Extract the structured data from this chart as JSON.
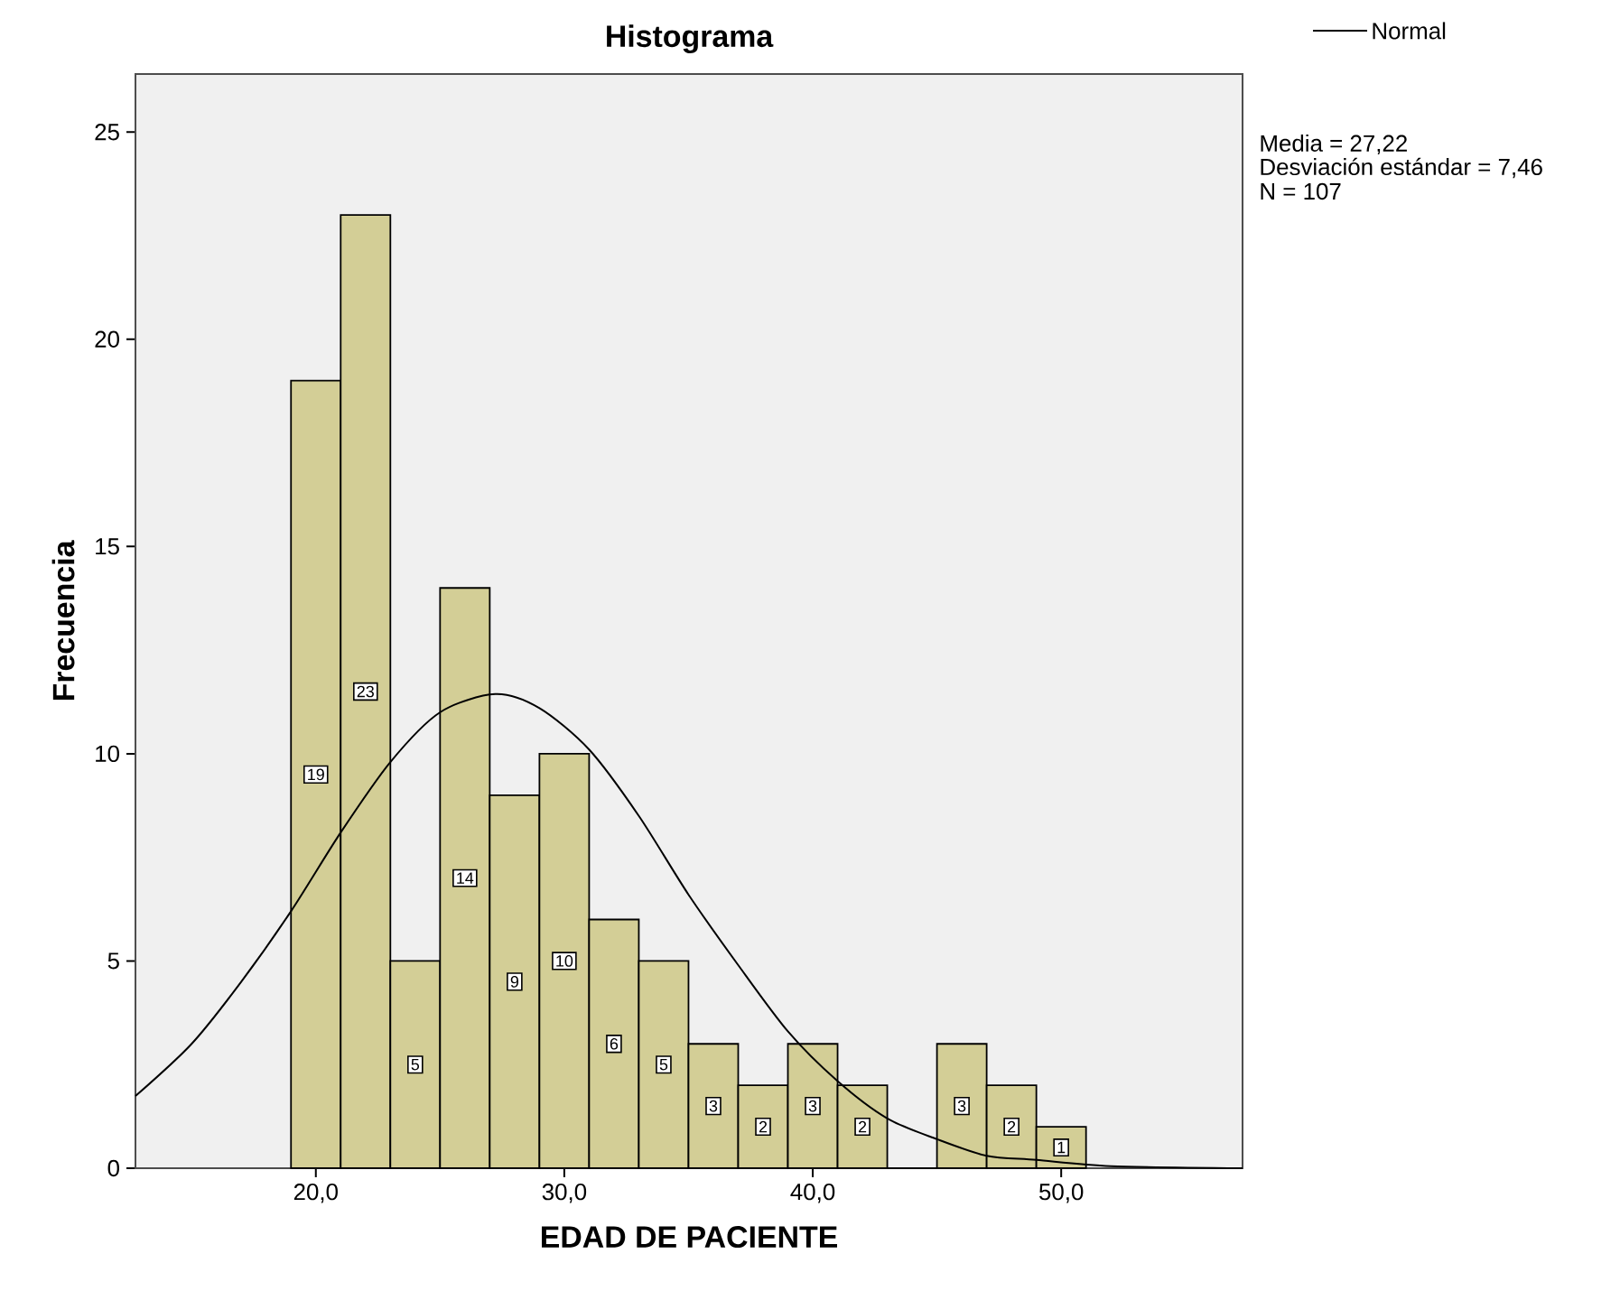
{
  "chart_data": {
    "type": "histogram",
    "title": "Histograma",
    "xlabel": "EDAD DE PACIENTE",
    "ylabel": "Frecuencia",
    "bins": [
      19,
      21,
      23,
      25,
      27,
      29,
      31,
      33,
      35,
      37,
      39,
      41,
      43,
      45,
      47,
      49,
      51
    ],
    "values": [
      19,
      23,
      5,
      14,
      9,
      10,
      6,
      5,
      3,
      2,
      3,
      2,
      0,
      3,
      2,
      1
    ],
    "value_labels": [
      "19",
      "23",
      "5",
      "14",
      "9",
      "10",
      "6",
      "5",
      "3",
      "2",
      "3",
      "2",
      null,
      "3",
      "2",
      "1"
    ],
    "color": "#d3ce96",
    "series": [
      {
        "type": "line",
        "name": "Normal",
        "color": "#000000",
        "x": [
          12.74,
          15,
          17,
          19,
          21,
          23,
          25,
          27.22,
          29,
          31,
          33,
          35,
          37,
          39,
          41,
          43,
          45,
          47,
          49,
          52,
          57.3
        ],
        "values": [
          1.74,
          3.0,
          4.5,
          6.2,
          8.1,
          9.8,
          11.0,
          11.44,
          11.1,
          10.1,
          8.5,
          6.6,
          4.9,
          3.3,
          2.1,
          1.2,
          0.7,
          0.3,
          0.2,
          0.05,
          0
        ]
      }
    ],
    "xlim": [
      12.74,
      57.3
    ],
    "xticks": [
      {
        "value": 20,
        "label": "20,0"
      },
      {
        "value": 30,
        "label": "30,0"
      },
      {
        "value": 40,
        "label": "40,0"
      },
      {
        "value": 50,
        "label": "50,0"
      }
    ],
    "ylim": [
      0,
      26.4
    ],
    "yticks": [
      0,
      5,
      10,
      15,
      20,
      25
    ],
    "legend": "top right",
    "annotations": [
      "Media = 27,22",
      "Desviación estándar = 7,46",
      "N = 107"
    ]
  }
}
